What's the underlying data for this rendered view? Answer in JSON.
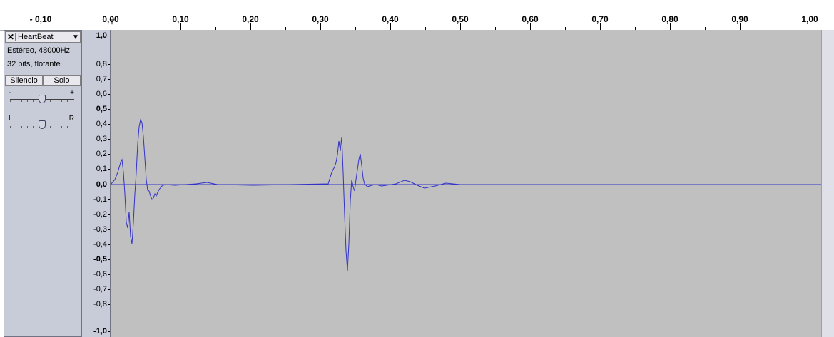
{
  "ruler": {
    "labels": [
      "- 0,10",
      "0,00",
      "0,10",
      "0,20",
      "0,30",
      "0,40",
      "0,50",
      "0,60",
      "0,70",
      "0,80",
      "0,90",
      "1,00"
    ]
  },
  "track": {
    "name": "HeartBeat",
    "close_icon": "close-icon",
    "menu_icon": "dropdown-arrow-icon",
    "format": "Estéreo, 48000Hz",
    "bits": "32 bits, flotante",
    "mute_label": "Silencio",
    "solo_label": "Solo",
    "gain": {
      "minus": "-",
      "plus": "+",
      "value": 0.5
    },
    "pan": {
      "left": "L",
      "right": "R",
      "value": 0.5
    }
  },
  "amplitude_scale": {
    "labels": [
      "1,0",
      "0,8",
      "0,7",
      "0,6",
      "0,5",
      "0,4",
      "0,3",
      "0,2",
      "0,1",
      "0,0",
      "-0,1",
      "-0,2",
      "-0,3",
      "-0,4",
      "-0,5",
      "-0,6",
      "-0,7",
      "-0,8",
      "-1,0"
    ]
  },
  "colors": {
    "waveform": "#3232c8",
    "background": "#c0c0c0",
    "panel": "#c8ccd8"
  }
}
